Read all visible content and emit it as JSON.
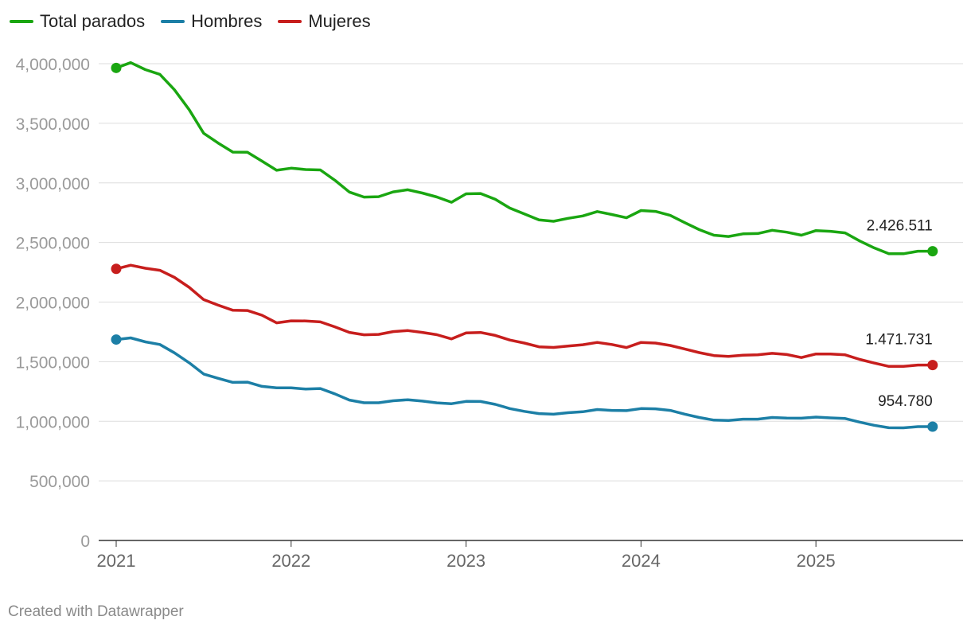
{
  "legend": {
    "items": [
      {
        "label": "Total parados",
        "color": "#1aa611"
      },
      {
        "label": "Hombres",
        "color": "#1c7fa6"
      },
      {
        "label": "Mujeres",
        "color": "#c71e1d"
      }
    ]
  },
  "footer": {
    "text": "Created with Datawrapper"
  },
  "chart_data": {
    "type": "line",
    "title": "",
    "xlabel": "",
    "ylabel": "",
    "x_ticks": [
      "2021",
      "2022",
      "2023",
      "2024",
      "2025"
    ],
    "y_ticks": [
      "0",
      "500,000",
      "1,000,000",
      "1,500,000",
      "2,000,000",
      "2,500,000",
      "3,000,000",
      "3,500,000",
      "4,000,000"
    ],
    "ylim": [
      0,
      4000000
    ],
    "xlim": [
      2021.0,
      2025.75
    ],
    "grid": true,
    "legend_position": "top-left",
    "x": [
      2021.0,
      2021.083,
      2021.167,
      2021.25,
      2021.333,
      2021.417,
      2021.5,
      2021.583,
      2021.667,
      2021.75,
      2021.833,
      2021.917,
      2022.0,
      2022.083,
      2022.167,
      2022.25,
      2022.333,
      2022.417,
      2022.5,
      2022.583,
      2022.667,
      2022.75,
      2022.833,
      2022.917,
      2023.0,
      2023.083,
      2023.167,
      2023.25,
      2023.333,
      2023.417,
      2023.5,
      2023.583,
      2023.667,
      2023.75,
      2023.833,
      2023.917,
      2024.0,
      2024.083,
      2024.167,
      2024.25,
      2024.333,
      2024.417,
      2024.5,
      2024.583,
      2024.667,
      2024.75,
      2024.833,
      2024.917,
      2025.0,
      2025.083,
      2025.167,
      2025.25,
      2025.333,
      2025.417,
      2025.5,
      2025.583,
      2025.667
    ],
    "series": [
      {
        "name": "Total parados",
        "color": "#1aa611",
        "end_label": "2.426.511",
        "values": [
          3964353,
          4008789,
          3949640,
          3910628,
          3781250,
          3614339,
          3416498,
          3333915,
          3257802,
          3257068,
          3182687,
          3105905,
          3123078,
          3111684,
          3108763,
          3022503,
          2922991,
          2880582,
          2883812,
          2924240,
          2941919,
          2914892,
          2881380,
          2837653,
          2908397,
          2911015,
          2862260,
          2788370,
          2739110,
          2688842,
          2677874,
          2702700,
          2722468,
          2759404,
          2734831,
          2707456,
          2767860,
          2760408,
          2727003,
          2666500,
          2607850,
          2561067,
          2550237,
          2572121,
          2575285,
          2602054,
          2586018,
          2560718,
          2599443,
          2593449,
          2580138,
          2512718,
          2454883,
          2405963,
          2405389,
          2426511,
          2426511
        ]
      },
      {
        "name": "Hombres",
        "color": "#1c7fa6",
        "end_label": "954.780",
        "values": [
          1685707,
          1699437,
          1665893,
          1644146,
          1574003,
          1490549,
          1396045,
          1360219,
          1326254,
          1328149,
          1293021,
          1280312,
          1280474,
          1270124,
          1274734,
          1230211,
          1177669,
          1155093,
          1155001,
          1171911,
          1180829,
          1169091,
          1154847,
          1146941,
          1166547,
          1166240,
          1142016,
          1106768,
          1083185,
          1064211,
          1058808,
          1071830,
          1080117,
          1098225,
          1091058,
          1088935,
          1106521,
          1104474,
          1091069,
          1059618,
          1031854,
          1009962,
          1006154,
          1017587,
          1017755,
          1031870,
          1026119,
          1026031,
          1035088,
          1028566,
          1022745,
          993217,
          966070,
          945316,
          945123,
          954780,
          954780
        ]
      },
      {
        "name": "Mujeres",
        "color": "#c71e1d",
        "end_label": "1.471.731",
        "values": [
          2278646,
          2309352,
          2283747,
          2266482,
          2207247,
          2123790,
          2020453,
          1973696,
          1931548,
          1928919,
          1889666,
          1825593,
          1842604,
          1841560,
          1834029,
          1792292,
          1745322,
          1725489,
          1728811,
          1752329,
          1761090,
          1745801,
          1726533,
          1690712,
          1741850,
          1744775,
          1720244,
          1681602,
          1655925,
          1624631,
          1619066,
          1630870,
          1642351,
          1661179,
          1643773,
          1618521,
          1661339,
          1655934,
          1635934,
          1606882,
          1575996,
          1551105,
          1544083,
          1554534,
          1557530,
          1570184,
          1559899,
          1534687,
          1564355,
          1564883,
          1557393,
          1519501,
          1488813,
          1460647,
          1460266,
          1471731,
          1471731
        ]
      }
    ]
  }
}
